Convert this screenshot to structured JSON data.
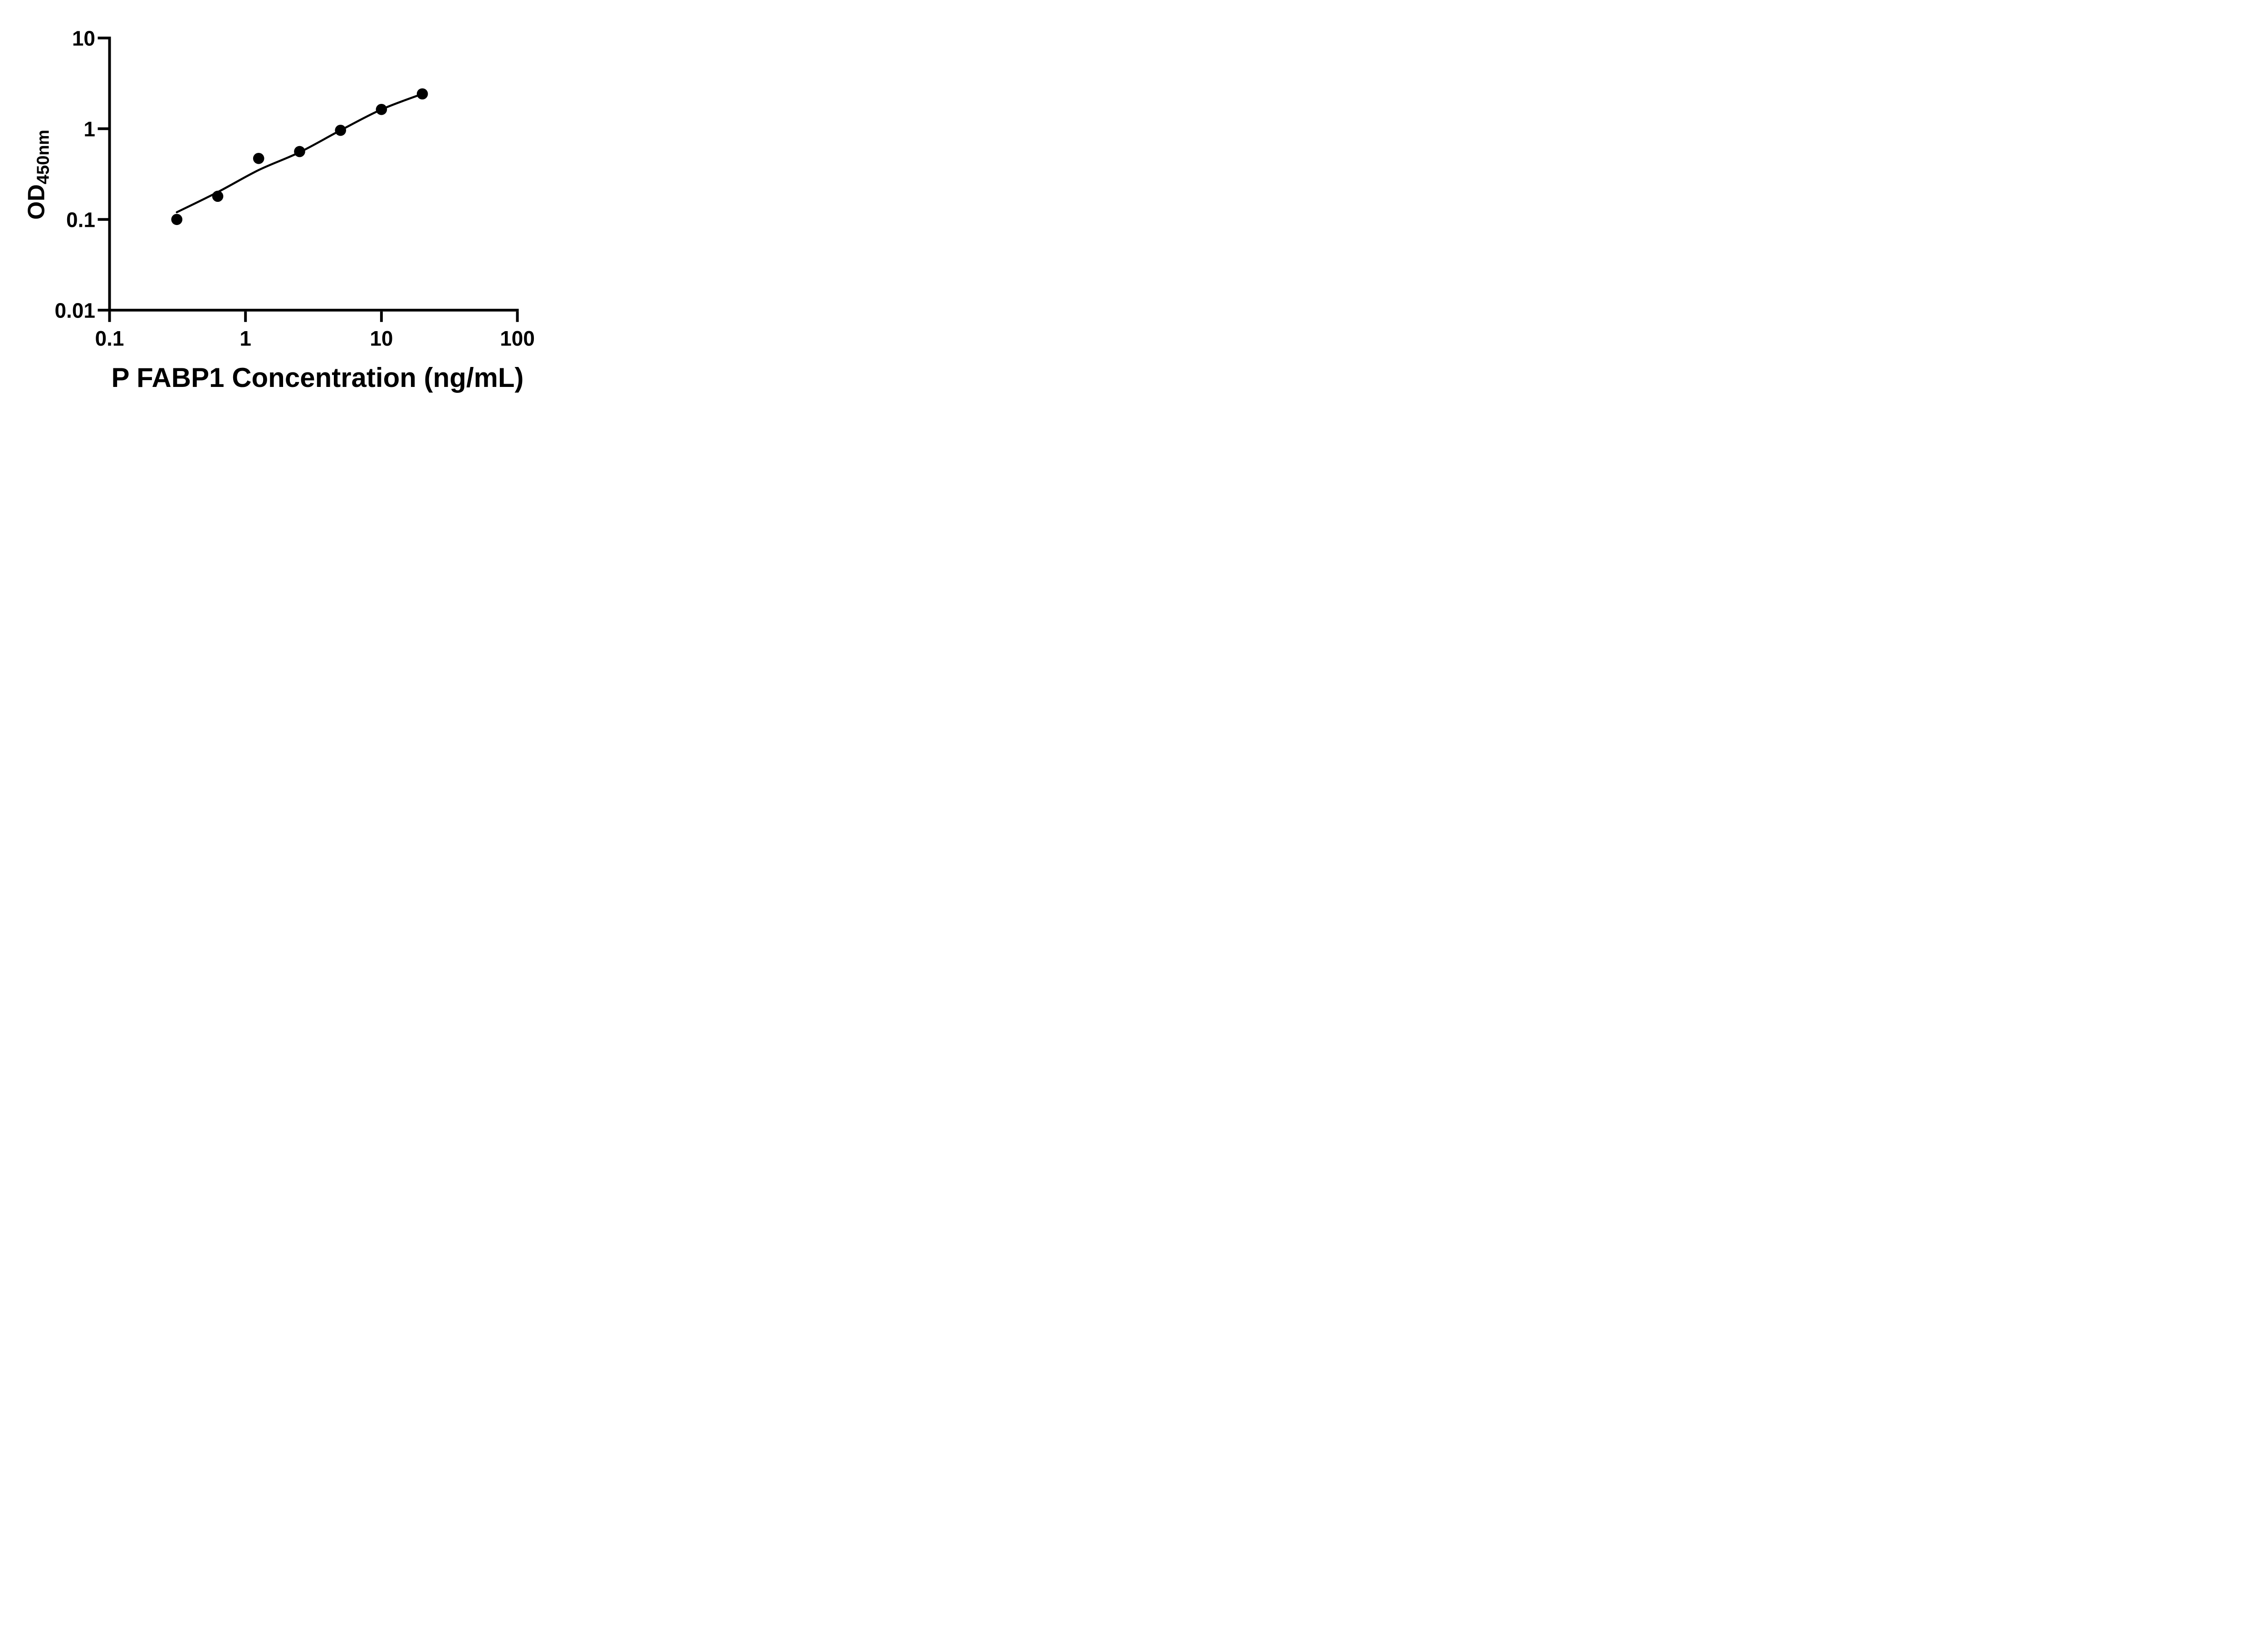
{
  "figure": {
    "background_color": "#ffffff",
    "ink_color": "#000000"
  },
  "chart_data": {
    "type": "scatter",
    "subtype": "elisa-standard-curve",
    "title": "",
    "xlabel": "P FABP1 Concentration (ng/mL)",
    "ylabel": "OD450nm",
    "ylabel_main": "OD",
    "ylabel_subscript": "450nm",
    "x_scale": "log10",
    "y_scale": "log10",
    "xlim": [
      0.1,
      100
    ],
    "ylim": [
      0.01,
      10
    ],
    "x_tick_labels": [
      "0.1",
      "1",
      "10",
      "100"
    ],
    "y_tick_labels": [
      "10",
      "1",
      "0.1",
      "0.01"
    ],
    "grid": false,
    "legend": false,
    "series": [
      {
        "name": "standard-points",
        "type": "scatter",
        "marker": "filled-circle",
        "color": "#000000",
        "x": [
          0.3125,
          0.625,
          1.25,
          2.5,
          5,
          10,
          20
        ],
        "y": [
          0.1,
          0.18,
          0.47,
          0.56,
          0.96,
          1.63,
          2.42
        ]
      },
      {
        "name": "fit-curve",
        "type": "line",
        "color": "#000000",
        "x": [
          0.3125,
          0.625,
          1.25,
          2.5,
          5,
          10,
          20
        ],
        "y": [
          0.12,
          0.2,
          0.35,
          0.55,
          0.96,
          1.63,
          2.42
        ]
      }
    ]
  }
}
